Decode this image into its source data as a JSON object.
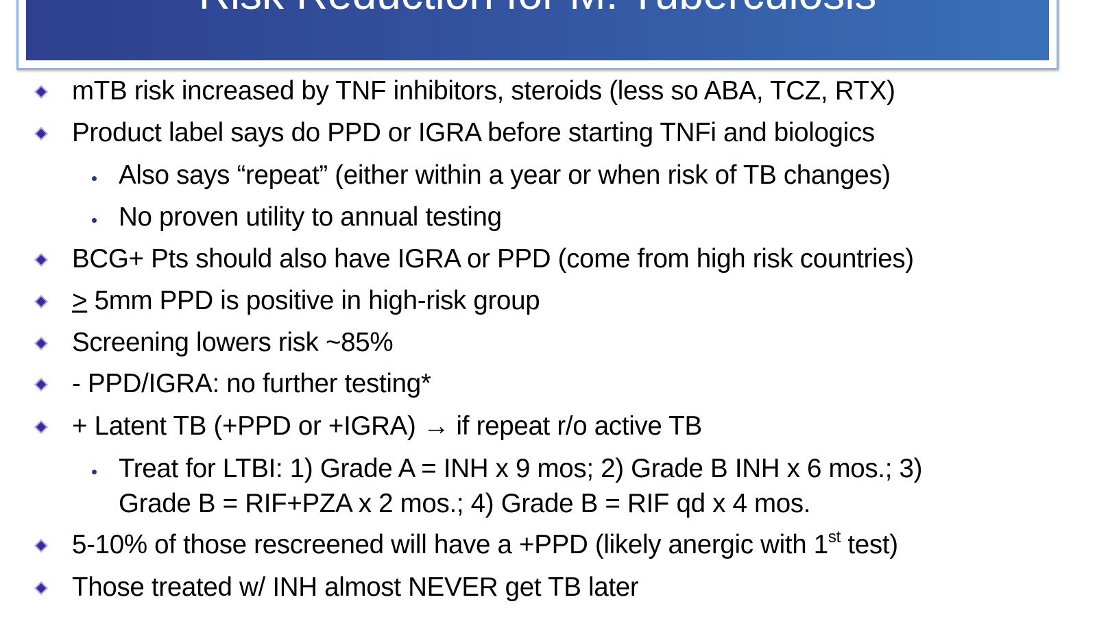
{
  "slide": {
    "title": "Risk Reduction for M. Tuberculosis",
    "colors": {
      "title_bg_left": "#2e3f8f",
      "title_bg_right": "#3a70b8",
      "frame": "#93b3de",
      "bullet": "#3b2a9a"
    },
    "bullet_icon": "diamond-bullet",
    "items": [
      {
        "level": 1,
        "text": "mTB risk increased by TNF inhibitors, steroids (less so ABA, TCZ, RTX)"
      },
      {
        "level": 1,
        "text": "Product label says do PPD or IGRA before starting TNFi and biologics"
      },
      {
        "level": 2,
        "text": "Also says “repeat” (either within a year or when risk of TB changes)"
      },
      {
        "level": 2,
        "text": "No proven utility to annual testing"
      },
      {
        "level": 1,
        "text": "BCG+ Pts should also have IGRA or PPD (come from high risk countries)"
      },
      {
        "level": 1,
        "prefix": ">",
        "text": " 5mm PPD is positive in high-risk group"
      },
      {
        "level": 1,
        "text": "Screening lowers risk ~85%"
      },
      {
        "level": 1,
        "text": "- PPD/IGRA: no further testing*"
      },
      {
        "level": 1,
        "text": "+ Latent TB (+PPD or +IGRA) ",
        "arrow": "→",
        "after": " if repeat r/o active TB"
      },
      {
        "level": 2,
        "text": "Treat for LTBI: 1) Grade A = INH x 9 mos; 2) Grade B INH x 6 mos.; 3)",
        "cont": "Grade B = RIF+PZA x 2 mos.; 4) Grade B = RIF qd x 4 mos."
      },
      {
        "level": 1,
        "text": "5-10% of those rescreened will have a +PPD (likely anergic with 1",
        "sup": "st",
        "after": " test)"
      },
      {
        "level": 1,
        "text": "Those treated w/ INH almost NEVER get TB later"
      }
    ]
  }
}
